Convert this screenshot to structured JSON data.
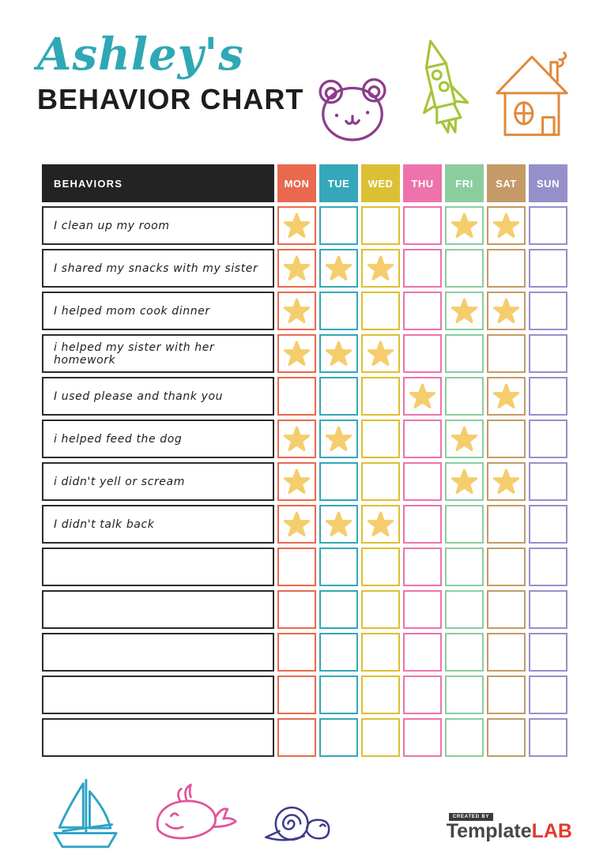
{
  "header": {
    "name_script": "Ashley's",
    "title": "BEHAVIOR CHART"
  },
  "table": {
    "behaviors_header": "BEHAVIORS",
    "days": [
      {
        "label": "MON",
        "color": "#e9694e"
      },
      {
        "label": "TUE",
        "color": "#35a7b9"
      },
      {
        "label": "WED",
        "color": "#dcc034"
      },
      {
        "label": "THU",
        "color": "#ee72ab"
      },
      {
        "label": "FRI",
        "color": "#8ccd9e"
      },
      {
        "label": "SAT",
        "color": "#c49a69"
      },
      {
        "label": "SUN",
        "color": "#9590ca"
      }
    ],
    "star_color": "#f5cd6d",
    "rows": [
      {
        "label": "I clean up my room",
        "stars": [
          1,
          0,
          0,
          0,
          1,
          1,
          0
        ]
      },
      {
        "label": "I shared my snacks with my sister",
        "stars": [
          1,
          1,
          1,
          0,
          0,
          0,
          0
        ]
      },
      {
        "label": "I helped mom cook dinner",
        "stars": [
          1,
          0,
          0,
          0,
          1,
          1,
          0
        ]
      },
      {
        "label": "i helped my sister with her homework",
        "stars": [
          1,
          1,
          1,
          0,
          0,
          0,
          0
        ]
      },
      {
        "label": "I used please and thank you",
        "stars": [
          0,
          0,
          0,
          1,
          0,
          1,
          0
        ]
      },
      {
        "label": "i helped feed the dog",
        "stars": [
          1,
          1,
          0,
          0,
          1,
          0,
          0
        ]
      },
      {
        "label": "i didn't yell or scream",
        "stars": [
          1,
          0,
          0,
          0,
          1,
          1,
          0
        ]
      },
      {
        "label": "I didn't talk back",
        "stars": [
          1,
          1,
          1,
          0,
          0,
          0,
          0
        ]
      },
      {
        "label": "",
        "stars": [
          0,
          0,
          0,
          0,
          0,
          0,
          0
        ]
      },
      {
        "label": "",
        "stars": [
          0,
          0,
          0,
          0,
          0,
          0,
          0
        ]
      },
      {
        "label": "",
        "stars": [
          0,
          0,
          0,
          0,
          0,
          0,
          0
        ]
      },
      {
        "label": "",
        "stars": [
          0,
          0,
          0,
          0,
          0,
          0,
          0
        ]
      },
      {
        "label": "",
        "stars": [
          0,
          0,
          0,
          0,
          0,
          0,
          0
        ]
      }
    ]
  },
  "decorations": {
    "top_icons": [
      "bear",
      "rocket",
      "house"
    ],
    "bottom_icons": [
      "sailboat",
      "whale",
      "snail"
    ],
    "colors": {
      "bear": "#8c3d8c",
      "rocket": "#a6c438",
      "house": "#e08b3c",
      "sailboat": "#2ea3c6",
      "whale": "#e0549c",
      "snail": "#3f3a8c"
    }
  },
  "footer": {
    "credit_label": "CREATED BY",
    "brand_part1": "Template",
    "brand_part2": "LAB"
  },
  "colors": {
    "title_script": "#2fa8b5",
    "title_main": "#1d1d1d",
    "behaviors_header_bg": "#232323",
    "row_label_border": "#2b2b2b"
  }
}
